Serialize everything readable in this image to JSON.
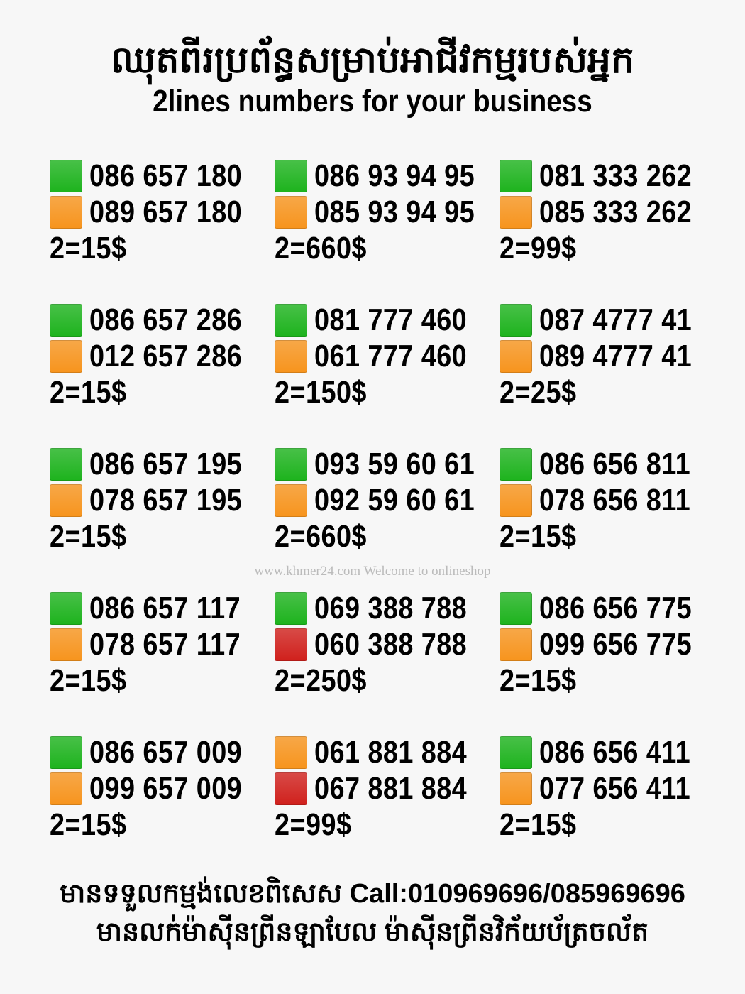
{
  "title_kh": "ឈុតពីរប្រព័ន្ធសម្រាប់អាជីវកម្មរបស់អ្នក",
  "title_en": "2lines numbers for your business",
  "colors": {
    "green": "#1db31d",
    "orange": "#f7941d",
    "red": "#d0201c"
  },
  "blocks": [
    {
      "lines": [
        {
          "color": "green",
          "number": "086 657 180"
        },
        {
          "color": "orange",
          "number": "089 657 180"
        }
      ],
      "price": "2=15$"
    },
    {
      "lines": [
        {
          "color": "green",
          "number": "086 93 94 95"
        },
        {
          "color": "orange",
          "number": "085 93 94 95"
        }
      ],
      "price": "2=660$"
    },
    {
      "lines": [
        {
          "color": "green",
          "number": "081 333 262"
        },
        {
          "color": "orange",
          "number": "085 333 262"
        }
      ],
      "price": "2=99$"
    },
    {
      "lines": [
        {
          "color": "green",
          "number": "086 657 286"
        },
        {
          "color": "orange",
          "number": "012 657 286"
        }
      ],
      "price": "2=15$"
    },
    {
      "lines": [
        {
          "color": "green",
          "number": "081 777 460"
        },
        {
          "color": "orange",
          "number": "061 777 460"
        }
      ],
      "price": "2=150$"
    },
    {
      "lines": [
        {
          "color": "green",
          "number": "087 4777 41"
        },
        {
          "color": "orange",
          "number": "089 4777 41"
        }
      ],
      "price": "2=25$"
    },
    {
      "lines": [
        {
          "color": "green",
          "number": "086 657 195"
        },
        {
          "color": "orange",
          "number": "078 657 195"
        }
      ],
      "price": "2=15$"
    },
    {
      "lines": [
        {
          "color": "green",
          "number": "093 59 60 61"
        },
        {
          "color": "orange",
          "number": "092 59 60 61"
        }
      ],
      "price": "2=660$"
    },
    {
      "lines": [
        {
          "color": "green",
          "number": "086 656 811"
        },
        {
          "color": "orange",
          "number": "078 656 811"
        }
      ],
      "price": "2=15$"
    },
    {
      "lines": [
        {
          "color": "green",
          "number": "086 657 117"
        },
        {
          "color": "orange",
          "number": "078 657 117"
        }
      ],
      "price": "2=15$"
    },
    {
      "lines": [
        {
          "color": "green",
          "number": "069 388 788"
        },
        {
          "color": "red",
          "number": "060 388 788"
        }
      ],
      "price": "2=250$"
    },
    {
      "lines": [
        {
          "color": "green",
          "number": "086 656 775"
        },
        {
          "color": "orange",
          "number": "099 656 775"
        }
      ],
      "price": "2=15$"
    },
    {
      "lines": [
        {
          "color": "green",
          "number": "086 657 009"
        },
        {
          "color": "orange",
          "number": "099 657 009"
        }
      ],
      "price": "2=15$"
    },
    {
      "lines": [
        {
          "color": "orange",
          "number": "061 881 884"
        },
        {
          "color": "red",
          "number": "067 881 884"
        }
      ],
      "price": "2=99$"
    },
    {
      "lines": [
        {
          "color": "green",
          "number": "086 656 411"
        },
        {
          "color": "orange",
          "number": "077 656 411"
        }
      ],
      "price": "2=15$"
    }
  ],
  "footer": {
    "line1": "មានទទួលកម្មង់លេខពិសេស Call:010969696/085969696",
    "line2": "មានលក់ម៉ាស៊ីនព្រីនឡាបែល ម៉ាស៊ីនព្រីនវិក័យប័ត្រចល័ត"
  },
  "watermark": "www.khmer24.com Welcome to onlineshop"
}
